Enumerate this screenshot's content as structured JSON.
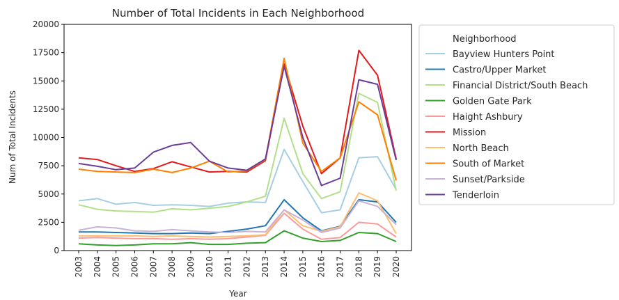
{
  "chart_data": {
    "type": "line",
    "title": "Number of Total Incidents in Each Neighborhood",
    "xlabel": "Year",
    "ylabel": "Num of Total Incidents",
    "x": [
      "2003",
      "2004",
      "2005",
      "2006",
      "2007",
      "2008",
      "2009",
      "2010",
      "2011",
      "2012",
      "2013",
      "2014",
      "2015",
      "2016",
      "2017",
      "2018",
      "2019",
      "2020"
    ],
    "ylim": [
      0,
      20000
    ],
    "yticks": [
      "0",
      "2500",
      "5000",
      "7500",
      "10000",
      "12500",
      "15000",
      "17500",
      "20000"
    ],
    "grid": false,
    "legend": {
      "title": "Neighborhood",
      "placement": "outside-right"
    },
    "series": [
      {
        "name": "Bayview Hunters Point",
        "color": "#a6cee3",
        "values": [
          4400,
          4600,
          4100,
          4250,
          4000,
          4050,
          4000,
          3900,
          4200,
          4300,
          4250,
          8950,
          6100,
          3350,
          3600,
          8200,
          8300,
          5400
        ]
      },
      {
        "name": "Castro/Upper Market",
        "color": "#1f78b4",
        "values": [
          1650,
          1650,
          1600,
          1550,
          1500,
          1500,
          1550,
          1500,
          1700,
          1900,
          2200,
          4500,
          2900,
          1750,
          2150,
          4500,
          4300,
          2500
        ]
      },
      {
        "name": "Financial District/South Beach",
        "color": "#b2df8a",
        "values": [
          4050,
          3650,
          3500,
          3450,
          3400,
          3700,
          3600,
          3750,
          3900,
          4300,
          4800,
          11700,
          6800,
          4600,
          5200,
          13900,
          13100,
          5300
        ]
      },
      {
        "name": "Golden Gate Park",
        "color": "#33a02c",
        "values": [
          600,
          500,
          450,
          500,
          600,
          600,
          700,
          550,
          550,
          650,
          700,
          1750,
          1100,
          800,
          900,
          1600,
          1500,
          800
        ]
      },
      {
        "name": "Haight Ashbury",
        "color": "#fb9a99",
        "values": [
          1100,
          1150,
          1100,
          1050,
          1050,
          1000,
          1050,
          1000,
          1050,
          1200,
          1350,
          3300,
          1900,
          1000,
          1150,
          2500,
          2350,
          1200
        ]
      },
      {
        "name": "Mission",
        "color": "#e31a1c",
        "values": [
          8200,
          8050,
          7500,
          7000,
          7250,
          7850,
          7400,
          6950,
          7000,
          6950,
          7950,
          16500,
          11000,
          6800,
          8200,
          17700,
          15500,
          8100
        ]
      },
      {
        "name": "North Beach",
        "color": "#fdbf6f",
        "values": [
          1300,
          1300,
          1300,
          1300,
          1250,
          1300,
          1250,
          1200,
          1250,
          1300,
          1400,
          3600,
          2200,
          1700,
          2100,
          5100,
          4400,
          1500
        ]
      },
      {
        "name": "South of Market",
        "color": "#ff7f00",
        "values": [
          7200,
          7000,
          6950,
          6900,
          7200,
          6900,
          7300,
          7900,
          6950,
          7050,
          8050,
          17000,
          9500,
          7000,
          8200,
          13150,
          12000,
          6200
        ]
      },
      {
        "name": "Sunset/Parkside",
        "color": "#cab2d6",
        "values": [
          1800,
          2100,
          2000,
          1750,
          1700,
          1850,
          1750,
          1650,
          1600,
          1700,
          1650,
          3600,
          2700,
          1600,
          2000,
          4400,
          3900,
          2300
        ]
      },
      {
        "name": "Tenderloin",
        "color": "#6a3d9a",
        "values": [
          7700,
          7450,
          7150,
          7300,
          8700,
          9300,
          9550,
          7900,
          7300,
          7100,
          8100,
          16300,
          10000,
          5750,
          6400,
          15100,
          14700,
          8000
        ]
      }
    ]
  }
}
